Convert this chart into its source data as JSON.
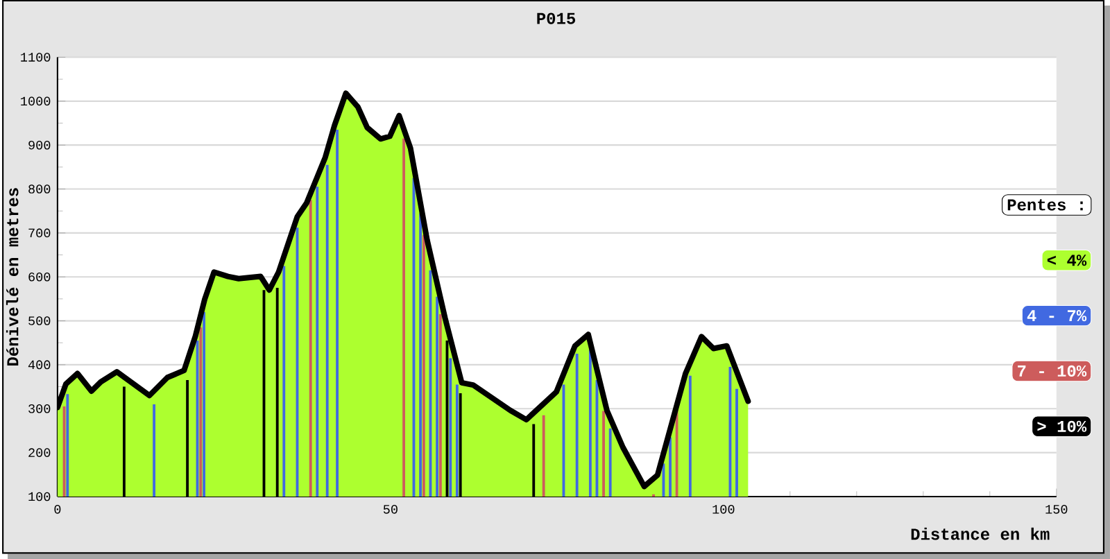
{
  "chart_data": {
    "type": "area",
    "title": "P015",
    "xlabel": "Distance en km",
    "ylabel": "Dénivelé en metres",
    "legend_title": "Pentes :",
    "xlim": [
      0,
      150
    ],
    "xticks": [
      0,
      50,
      100,
      150
    ],
    "ylim": [
      100,
      1100
    ],
    "yticks": [
      100,
      200,
      300,
      400,
      500,
      600,
      700,
      800,
      900,
      1000,
      1100
    ],
    "grid": "y",
    "legend": "right",
    "series": [
      {
        "name": "< 4%",
        "color": "#adff2f",
        "x": [
          0,
          1.25,
          3,
          5.1,
          6.5,
          8.9,
          13.8,
          16.5,
          19,
          20.7,
          22.1,
          23.5,
          25.6,
          27.2,
          30.5,
          31.8,
          33.2,
          36,
          37.4,
          40.2,
          41.6,
          43.3,
          45.1,
          46.5,
          48.5,
          49.9,
          51.3,
          53.0,
          55.5,
          58.2,
          60.7,
          62.4,
          68.0,
          70.4,
          74.9,
          77.7,
          79.7,
          82.5,
          84.9,
          88.1,
          90.1,
          94.3,
          96.7,
          98.5,
          100.5,
          103.7
        ],
        "values": [
          303,
          356,
          380,
          340,
          361,
          384,
          330,
          371,
          387,
          465,
          549,
          611,
          601,
          596,
          601,
          570,
          611,
          737,
          768,
          872,
          945,
          1018,
          987,
          940,
          914,
          920,
          967,
          893,
          684,
          506,
          359,
          354,
          296,
          275,
          338,
          443,
          469,
          296,
          212,
          123,
          149,
          380,
          464,
          437,
          443,
          317
        ]
      },
      {
        "name": "4 - 7%",
        "type": "bar",
        "color": "#4169e1",
        "x": [
          1.5,
          14.5,
          21,
          22,
          34,
          36,
          39,
          40.5,
          42,
          53.5,
          54.5,
          56,
          57,
          59,
          60,
          76,
          78,
          80,
          81,
          83,
          91,
          92,
          95,
          101,
          102
        ],
        "values": [
          333,
          310,
          455,
          520,
          625,
          712,
          805,
          855,
          935,
          825,
          745,
          615,
          555,
          415,
          355,
          355,
          425,
          435,
          365,
          255,
          175,
          235,
          375,
          395,
          345
        ]
      },
      {
        "name": "7 - 10%",
        "type": "bar",
        "color": "#cd5c5c",
        "x": [
          1,
          21.5,
          38,
          52,
          55,
          57.5,
          73,
          82,
          89.5,
          93
        ],
        "values": [
          305,
          485,
          775,
          915,
          695,
          515,
          285,
          295,
          105,
          305
        ]
      },
      {
        "name": "> 10%",
        "type": "bar",
        "color": "#000000",
        "x": [
          10,
          19.5,
          31,
          33,
          58.5,
          60.5,
          71.5
        ],
        "values": [
          350,
          365,
          570,
          575,
          455,
          335,
          265
        ]
      }
    ]
  }
}
